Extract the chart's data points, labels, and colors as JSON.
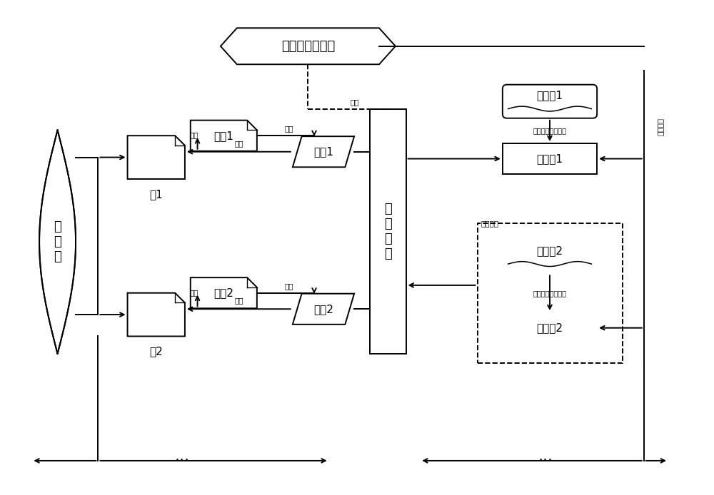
{
  "bg_color": "#ffffff",
  "line_color": "#000000",
  "font_size_title": 13,
  "font_size_box": 11,
  "font_size_label": 8,
  "font_size_small": 7.5,
  "font_size_dots": 16,
  "title": "数据控制虚拟类",
  "db_label": "数\n据\n库",
  "ctrl_label": "控\n制\n模\n块",
  "biaolei1": "表类1",
  "biaolei2": "表类2",
  "duixiang1": "对象1",
  "duixiang2": "对象2",
  "biao1": "表1",
  "biao2": "表2",
  "shujuyuan1": "数据源1",
  "shujuyuan2": "数据源2",
  "shujulei1": "数据类1",
  "shujulei2": "数据类2",
  "label_duiying": "对应",
  "label_shiti": "实体",
  "label_cunru": "存入",
  "label_diaoyong": "调用",
  "label_genjushuju": "根据数据决定实体",
  "label_shijidiaoyong": "实际调用",
  "label_shixianjiekou": "实现接口",
  "label_dots": "···",
  "figw": 10.0,
  "figh": 6.94,
  "dpi": 100
}
